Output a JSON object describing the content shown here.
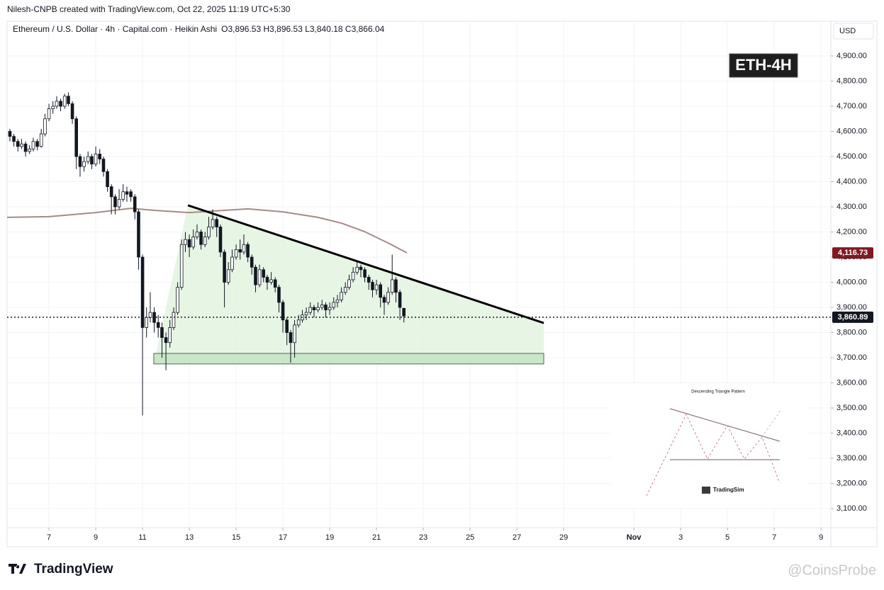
{
  "header": {
    "creator": "Nilesh-CNPB created with TradingView.com, Oct 22, 2025 11:19 UTC+5:30",
    "symbol": "Ethereum / U.S. Dollar · 4h · Capital.com · Heikin Ashi",
    "ohlc_text": "O3,896.53  H3,896.53  L3,840.18  C3,866.04"
  },
  "chart_data": {
    "type": "candlestick",
    "currency": "USD",
    "badge": "ETH-4H",
    "up_color": "#ffffff",
    "down_color": "#131722",
    "outline_color": "#131722",
    "grid": true,
    "xlim": [
      5.21,
      40.42
    ],
    "ylim": [
      3024,
      5038
    ],
    "xticks": [
      7,
      9,
      11,
      13,
      15,
      17,
      19,
      21,
      23,
      25,
      27,
      29,
      {
        "value": 32,
        "label": "Nov"
      },
      {
        "value": 34,
        "label": "3"
      },
      {
        "value": 36,
        "label": "5"
      },
      {
        "value": 38,
        "label": "7"
      },
      {
        "value": 40,
        "label": "9"
      }
    ],
    "yticks": [
      {
        "value": 3100,
        "label": "3,100.00"
      },
      {
        "value": 3200,
        "label": "3,200.00"
      },
      {
        "value": 3300,
        "label": "3,300.00"
      },
      {
        "value": 3400,
        "label": "3,400.00"
      },
      {
        "value": 3500,
        "label": "3,500.00"
      },
      {
        "value": 3600,
        "label": "3,600.00"
      },
      {
        "value": 3700,
        "label": "3,700.00"
      },
      {
        "value": 3800,
        "label": "3,800.00"
      },
      {
        "value": 3900,
        "label": "3,900.00"
      },
      {
        "value": 4000,
        "label": "4,000.00"
      },
      {
        "value": 4100,
        "label": "4,100.00"
      },
      {
        "value": 4200,
        "label": "4,200.00"
      },
      {
        "value": 4300,
        "label": "4,300.00"
      },
      {
        "value": 4400,
        "label": "4,400.00"
      },
      {
        "value": 4500,
        "label": "4,500.00"
      },
      {
        "value": 4600,
        "label": "4,600.00"
      },
      {
        "value": 4700,
        "label": "4,700.00"
      },
      {
        "value": 4800,
        "label": "4,800.00"
      },
      {
        "value": 4900,
        "label": "4,900.00"
      }
    ],
    "x": [
      5.33,
      5.5,
      5.67,
      5.83,
      6,
      6.17,
      6.33,
      6.5,
      6.67,
      6.83,
      7,
      7.17,
      7.33,
      7.5,
      7.67,
      7.83,
      8,
      8.17,
      8.33,
      8.5,
      8.67,
      8.83,
      9,
      9.17,
      9.33,
      9.5,
      9.67,
      9.83,
      10,
      10.17,
      10.33,
      10.5,
      10.67,
      10.83,
      11,
      11.17,
      11.33,
      11.5,
      11.67,
      11.83,
      12,
      12.17,
      12.33,
      12.5,
      12.67,
      12.83,
      13,
      13.17,
      13.33,
      13.5,
      13.67,
      13.83,
      14,
      14.17,
      14.33,
      14.5,
      14.67,
      14.83,
      15,
      15.17,
      15.33,
      15.5,
      15.67,
      15.83,
      16,
      16.17,
      16.33,
      16.5,
      16.67,
      16.83,
      17,
      17.17,
      17.33,
      17.5,
      17.67,
      17.83,
      18,
      18.17,
      18.33,
      18.5,
      18.67,
      18.83,
      19,
      19.17,
      19.33,
      19.5,
      19.67,
      19.83,
      20,
      20.17,
      20.33,
      20.5,
      20.67,
      20.83,
      21,
      21.17,
      21.33,
      21.5,
      21.67,
      21.83,
      22,
      22.17
    ],
    "candles": [
      [
        4600,
        4610,
        4560,
        4580
      ],
      [
        4580,
        4590,
        4540,
        4560
      ],
      [
        4560,
        4570,
        4520,
        4540
      ],
      [
        4540,
        4570,
        4530,
        4550
      ],
      [
        4550,
        4560,
        4500,
        4520
      ],
      [
        4520,
        4545,
        4510,
        4530
      ],
      [
        4530,
        4575,
        4520,
        4560
      ],
      [
        4560,
        4570,
        4525,
        4540
      ],
      [
        4540,
        4610,
        4535,
        4590
      ],
      [
        4590,
        4670,
        4580,
        4650
      ],
      [
        4650,
        4710,
        4640,
        4690
      ],
      [
        4690,
        4720,
        4670,
        4700
      ],
      [
        4700,
        4740,
        4690,
        4720
      ],
      [
        4720,
        4730,
        4680,
        4700
      ],
      [
        4700,
        4750,
        4690,
        4740
      ],
      [
        4740,
        4755,
        4700,
        4710
      ],
      [
        4710,
        4720,
        4630,
        4650
      ],
      [
        4650,
        4660,
        4450,
        4500
      ],
      [
        4500,
        4510,
        4420,
        4460
      ],
      [
        4460,
        4500,
        4440,
        4480
      ],
      [
        4480,
        4520,
        4470,
        4500
      ],
      [
        4500,
        4510,
        4450,
        4470
      ],
      [
        4470,
        4540,
        4460,
        4510
      ],
      [
        4510,
        4530,
        4470,
        4490
      ],
      [
        4490,
        4500,
        4420,
        4440
      ],
      [
        4440,
        4450,
        4360,
        4380
      ],
      [
        4380,
        4390,
        4270,
        4340
      ],
      [
        4340,
        4350,
        4270,
        4300
      ],
      [
        4300,
        4370,
        4290,
        4330
      ],
      [
        4330,
        4390,
        4320,
        4360
      ],
      [
        4360,
        4380,
        4320,
        4350
      ],
      [
        4360,
        4370,
        4320,
        4340
      ],
      [
        4340,
        4350,
        4250,
        4280
      ],
      [
        4280,
        4290,
        4050,
        4100
      ],
      [
        4100,
        4110,
        3470,
        3820
      ],
      [
        3820,
        3900,
        3780,
        3860
      ],
      [
        3860,
        3960,
        3840,
        3880
      ],
      [
        3880,
        3900,
        3800,
        3840
      ],
      [
        3840,
        3870,
        3780,
        3820
      ],
      [
        3820,
        3840,
        3700,
        3780
      ],
      [
        3780,
        3800,
        3650,
        3760
      ],
      [
        3760,
        3850,
        3740,
        3820
      ],
      [
        3820,
        3900,
        3810,
        3880
      ],
      [
        3880,
        4000,
        3870,
        3980
      ],
      [
        3980,
        4170,
        3970,
        4150
      ],
      [
        4150,
        4200,
        4120,
        4170
      ],
      [
        4170,
        4190,
        4100,
        4140
      ],
      [
        4140,
        4210,
        4130,
        4180
      ],
      [
        4180,
        4230,
        4170,
        4200
      ],
      [
        4200,
        4210,
        4130,
        4150
      ],
      [
        4150,
        4200,
        4140,
        4180
      ],
      [
        4180,
        4260,
        4170,
        4220
      ],
      [
        4220,
        4290,
        4210,
        4250
      ],
      [
        4250,
        4260,
        4180,
        4220
      ],
      [
        4220,
        4230,
        4100,
        4120
      ],
      [
        4120,
        4130,
        3900,
        4000
      ],
      [
        4000,
        4080,
        3990,
        4050
      ],
      [
        4050,
        4130,
        4040,
        4100
      ],
      [
        4100,
        4150,
        4090,
        4130
      ],
      [
        4130,
        4170,
        4090,
        4120
      ],
      [
        4120,
        4190,
        4110,
        4150
      ],
      [
        4150,
        4160,
        4080,
        4100
      ],
      [
        4100,
        4110,
        4030,
        4060
      ],
      [
        4060,
        4070,
        3960,
        3990
      ],
      [
        3990,
        4070,
        3980,
        4050
      ],
      [
        4050,
        4060,
        4000,
        4020
      ],
      [
        4020,
        4030,
        3970,
        4000
      ],
      [
        4000,
        4040,
        3990,
        4010
      ],
      [
        4010,
        4020,
        3960,
        3980
      ],
      [
        3980,
        3990,
        3880,
        3920
      ],
      [
        3920,
        3930,
        3800,
        3850
      ],
      [
        3850,
        3860,
        3750,
        3800
      ],
      [
        3800,
        3810,
        3680,
        3760
      ],
      [
        3760,
        3850,
        3700,
        3830
      ],
      [
        3830,
        3870,
        3820,
        3850
      ],
      [
        3850,
        3890,
        3840,
        3870
      ],
      [
        3870,
        3900,
        3850,
        3880
      ],
      [
        3880,
        3920,
        3870,
        3900
      ],
      [
        3900,
        3910,
        3860,
        3890
      ],
      [
        3890,
        3920,
        3880,
        3900
      ],
      [
        3900,
        3930,
        3890,
        3910
      ],
      [
        3910,
        3920,
        3860,
        3890
      ],
      [
        3890,
        3920,
        3870,
        3900
      ],
      [
        3900,
        3940,
        3890,
        3920
      ],
      [
        3920,
        3950,
        3900,
        3930
      ],
      [
        3930,
        3980,
        3920,
        3960
      ],
      [
        3960,
        4000,
        3950,
        3980
      ],
      [
        3980,
        4030,
        3970,
        4010
      ],
      [
        4010,
        4060,
        4000,
        4040
      ],
      [
        4040,
        4080,
        4030,
        4060
      ],
      [
        4060,
        4070,
        4020,
        4050
      ],
      [
        4050,
        4060,
        4000,
        4020
      ],
      [
        4020,
        4030,
        3970,
        4000
      ],
      [
        4000,
        4010,
        3940,
        3970
      ],
      [
        3970,
        4010,
        3950,
        3990
      ],
      [
        3990,
        4000,
        3900,
        3940
      ],
      [
        3940,
        3950,
        3870,
        3920
      ],
      [
        3920,
        3980,
        3910,
        3960
      ],
      [
        3960,
        4110,
        3950,
        4010
      ],
      [
        4010,
        4020,
        3920,
        3960
      ],
      [
        3960,
        3970,
        3850,
        3900
      ],
      [
        3896.53,
        3896.53,
        3840.18,
        3866.04
      ]
    ],
    "moving_average": {
      "color": "#a68a86",
      "x": [
        5.21,
        7,
        9,
        10.5,
        11.5,
        13,
        14.5,
        15.5,
        17,
        18.5,
        19.5,
        20.5,
        21.5,
        22.3
      ],
      "values": [
        4258,
        4261,
        4277,
        4294,
        4286,
        4277,
        4286,
        4292,
        4280,
        4258,
        4235,
        4201,
        4156,
        4117
      ]
    },
    "trendline": {
      "color": "#000000",
      "x": [
        12.94,
        28.15
      ],
      "values": [
        4306,
        3838
      ]
    },
    "support_zone": {
      "color": "#c8e6c9",
      "x": [
        11.48,
        28.15
      ],
      "range": [
        3675,
        3717
      ]
    },
    "pattern_fill": "#e3f4e1",
    "price_tags": [
      {
        "value": 4116.73,
        "label": "4,116.73",
        "color": "#801922"
      },
      {
        "value": 3860.89,
        "label": "3,860.89",
        "color": "#131722"
      }
    ]
  },
  "inset": {
    "title": "Descending Triangle Pattern",
    "brand": "TradingSim"
  },
  "footer": {
    "logo": "TradingView",
    "watermark": "@CoinsProbe"
  }
}
